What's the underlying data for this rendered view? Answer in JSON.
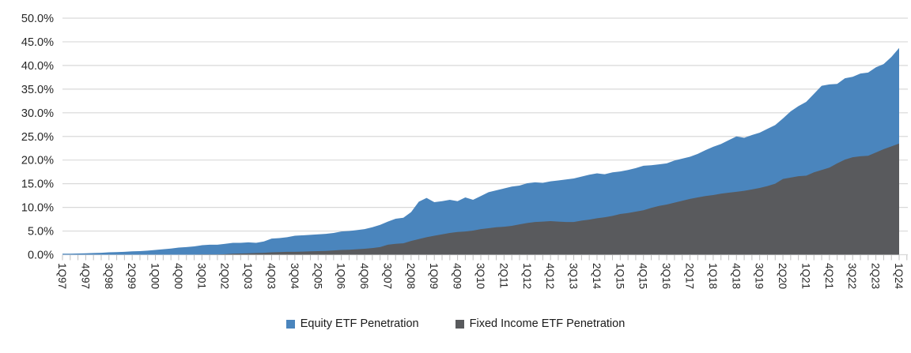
{
  "chart_data": {
    "type": "area",
    "mode": "overlaid",
    "title": "",
    "xlabel": "",
    "ylabel": "",
    "ylim": [
      0,
      50
    ],
    "ytick_step": 5,
    "ytick_labels_top_to_bottom": [
      "50.0%",
      "45.0%",
      "40.0%",
      "35.0%",
      "30.0%",
      "25.0%",
      "20.0%",
      "15.0%",
      "10.0%",
      "5.0%",
      "0.0%"
    ],
    "x_start": "1Q97",
    "x_end": "1Q24",
    "x_points": 109,
    "x_label_every_n_quarters": 3,
    "x_tick_labels": [
      "1Q97",
      "4Q97",
      "3Q98",
      "2Q99",
      "1Q00",
      "4Q00",
      "3Q01",
      "2Q02",
      "1Q03",
      "4Q03",
      "3Q04",
      "2Q05",
      "1Q06",
      "4Q06",
      "3Q07",
      "2Q08",
      "1Q09",
      "4Q09",
      "3Q10",
      "2Q11",
      "1Q12",
      "4Q12",
      "3Q13",
      "2Q14",
      "1Q15",
      "4Q15",
      "3Q16",
      "2Q17",
      "1Q18",
      "4Q18",
      "3Q19",
      "2Q20",
      "1Q21",
      "4Q21",
      "3Q22",
      "2Q23",
      "1Q24"
    ],
    "grid": true,
    "gridline_color": "#d9d9d9",
    "axis_tick_color": "#bfbfbf",
    "label_color": "#262626",
    "legend_position": "bottom",
    "series": [
      {
        "name": "Equity ETF Penetration",
        "color": "#4a85bd",
        "values": [
          0.2,
          0.2,
          0.25,
          0.3,
          0.35,
          0.4,
          0.5,
          0.55,
          0.6,
          0.7,
          0.75,
          0.85,
          1.0,
          1.15,
          1.3,
          1.5,
          1.6,
          1.75,
          2.0,
          2.1,
          2.1,
          2.3,
          2.5,
          2.5,
          2.6,
          2.5,
          2.8,
          3.4,
          3.5,
          3.7,
          4.0,
          4.1,
          4.2,
          4.3,
          4.4,
          4.6,
          4.9,
          5.0,
          5.2,
          5.4,
          5.8,
          6.3,
          7.0,
          7.6,
          7.8,
          9.0,
          11.2,
          12.0,
          11.1,
          11.3,
          11.6,
          11.3,
          12.1,
          11.6,
          12.4,
          13.2,
          13.6,
          14.0,
          14.4,
          14.6,
          15.1,
          15.3,
          15.2,
          15.5,
          15.7,
          15.9,
          16.1,
          16.5,
          16.9,
          17.2,
          17.0,
          17.4,
          17.6,
          17.9,
          18.3,
          18.8,
          18.9,
          19.1,
          19.3,
          19.9,
          20.3,
          20.7,
          21.3,
          22.1,
          22.8,
          23.4,
          24.2,
          25.0,
          24.7,
          25.3,
          25.8,
          26.6,
          27.4,
          28.8,
          30.3,
          31.4,
          32.3,
          34.0,
          35.7,
          36.0,
          36.1,
          37.3,
          37.6,
          38.3,
          38.5,
          39.6,
          40.3,
          41.8,
          43.7
        ]
      },
      {
        "name": "Fixed Income ETF Penetration",
        "color": "#595a5d",
        "values": [
          0,
          0,
          0,
          0,
          0,
          0,
          0,
          0,
          0,
          0,
          0,
          0,
          0,
          0,
          0,
          0,
          0,
          0,
          0.05,
          0.05,
          0.05,
          0.1,
          0.2,
          0.25,
          0.3,
          0.35,
          0.4,
          0.5,
          0.55,
          0.6,
          0.6,
          0.65,
          0.7,
          0.75,
          0.8,
          0.9,
          1.0,
          1.05,
          1.15,
          1.25,
          1.4,
          1.6,
          2.1,
          2.3,
          2.4,
          2.9,
          3.3,
          3.7,
          4.0,
          4.3,
          4.6,
          4.8,
          4.9,
          5.1,
          5.4,
          5.6,
          5.8,
          5.9,
          6.1,
          6.4,
          6.7,
          6.9,
          7.0,
          7.1,
          7.0,
          6.9,
          6.9,
          7.2,
          7.4,
          7.7,
          7.9,
          8.2,
          8.6,
          8.8,
          9.1,
          9.4,
          9.9,
          10.3,
          10.6,
          11.0,
          11.4,
          11.8,
          12.1,
          12.4,
          12.6,
          12.9,
          13.1,
          13.3,
          13.5,
          13.8,
          14.1,
          14.5,
          15.0,
          16.0,
          16.3,
          16.6,
          16.7,
          17.4,
          17.9,
          18.4,
          19.3,
          20.1,
          20.6,
          20.8,
          20.9,
          21.6,
          22.3,
          22.9,
          23.5
        ]
      }
    ]
  },
  "legend": {
    "equity_label": "Equity ETF Penetration",
    "fixed_income_label": "Fixed Income ETF Penetration"
  }
}
